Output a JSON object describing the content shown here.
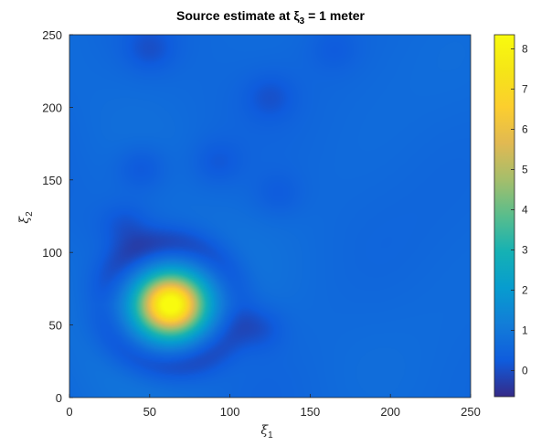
{
  "chart_data": {
    "type": "heatmap",
    "title": "Source estimate at ξ3 = 1 meter",
    "title_parts": {
      "prefix": "Source estimate at ξ",
      "sub": "3",
      "suffix": " = 1 meter"
    },
    "xlabel": {
      "base": "ξ",
      "sub": "1"
    },
    "ylabel": {
      "base": "ξ",
      "sub": "2"
    },
    "x_ticks": [
      0,
      50,
      100,
      150,
      200,
      250
    ],
    "y_ticks": [
      0,
      50,
      100,
      150,
      200,
      250
    ],
    "xlim": [
      0,
      250
    ],
    "ylim": [
      0,
      250
    ],
    "colorbar": {
      "ticks": [
        0,
        1,
        2,
        3,
        4,
        5,
        6,
        7,
        8
      ],
      "clim": [
        -0.65,
        8.35
      ],
      "colormap": "parula",
      "position": "right"
    },
    "background_value": 0.6,
    "features": [
      {
        "kind": "peak",
        "x": 63,
        "y": 64,
        "value": 8.3
      },
      {
        "kind": "ring-trough",
        "x": 63,
        "y": 64,
        "value": -0.5
      },
      {
        "kind": "ring-trough",
        "x": 63,
        "y": 64,
        "value": -0.55
      },
      {
        "kind": "trough",
        "x": 118,
        "y": 48,
        "value": 0.0
      },
      {
        "kind": "trough",
        "x": 35,
        "y": 118,
        "value": 0.1
      },
      {
        "kind": "trough",
        "x": 45,
        "y": 158,
        "value": 0.1
      },
      {
        "kind": "trough",
        "x": 92,
        "y": 162,
        "value": 0.2
      },
      {
        "kind": "trough",
        "x": 50,
        "y": 240,
        "value": 0.1
      },
      {
        "kind": "trough",
        "x": 125,
        "y": 207,
        "value": 0.15
      },
      {
        "kind": "trough",
        "x": 165,
        "y": 240,
        "value": 0.3
      },
      {
        "kind": "trough",
        "x": 130,
        "y": 140,
        "value": 0.25
      }
    ],
    "colors": {
      "axes": "#262626",
      "low": "#352a87",
      "mid_low": "#0f5cdd",
      "mid": "#06a4ca",
      "mid_high": "#7cbf7b",
      "high": "#f9fb0e"
    },
    "grid": false
  }
}
